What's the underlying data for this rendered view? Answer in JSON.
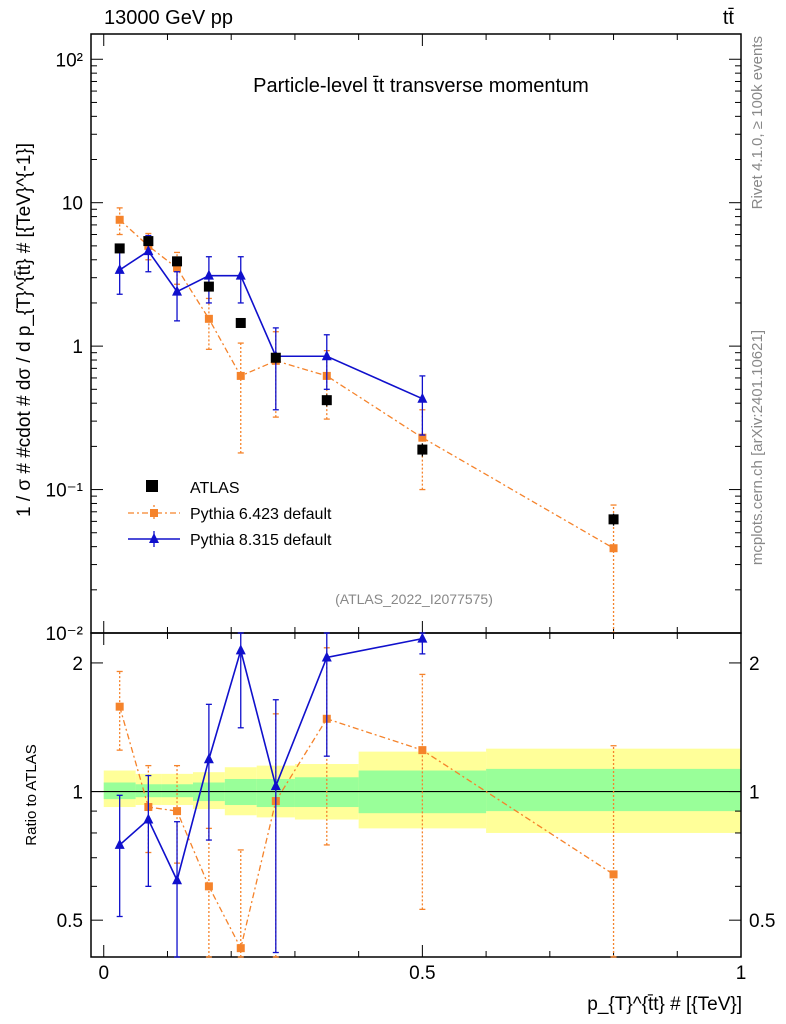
{
  "header": {
    "energy_label": "13000 GeV pp",
    "process_label": "tt̄",
    "plot_title": "Particle-level t̄t transverse momentum",
    "analysis_id": "(ATLAS_2022_I2077575)",
    "side_rivet": "Rivet 4.1.0, ≥ 100k events",
    "side_source": "mcplots.cern.ch [arXiv:2401.10621]"
  },
  "chart_data": [
    {
      "type": "line",
      "panel": "main",
      "ylabel": "1 / σ # #cdot # dσ / d p_{T}^{t̄t} # [{TeV}^{-1}]",
      "yscale": "log",
      "ylim": [
        0.01,
        150
      ],
      "xlim": [
        -0.02,
        1.0
      ],
      "y_ticks": [
        {
          "value": 100,
          "label": "10²"
        },
        {
          "value": 10,
          "label": "10"
        },
        {
          "value": 1,
          "label": "1"
        },
        {
          "value": 0.1,
          "label": "10⁻¹"
        },
        {
          "value": 0.01,
          "label": "10⁻²"
        }
      ],
      "legend": {
        "position": "bottom-left",
        "entries": [
          "ATLAS",
          "Pythia 6.423 default",
          "Pythia 8.315 default"
        ]
      },
      "series": [
        {
          "name": "ATLAS",
          "color": "#000000",
          "marker": "square",
          "x": [
            0.025,
            0.07,
            0.115,
            0.165,
            0.215,
            0.27,
            0.35,
            0.5,
            0.8
          ],
          "y": [
            4.8,
            5.4,
            3.9,
            2.6,
            1.45,
            0.83,
            0.42,
            0.19,
            0.062
          ],
          "yerr": [
            0.3,
            0.3,
            0.25,
            0.2,
            0.1,
            0.07,
            0.04,
            0.02,
            0.006
          ]
        },
        {
          "name": "Pythia 6.423 default",
          "color": "#f5832b",
          "marker": "square",
          "x": [
            0.025,
            0.07,
            0.115,
            0.165,
            0.215,
            0.27,
            0.35,
            0.5,
            0.8
          ],
          "y": [
            7.6,
            5.0,
            3.5,
            1.55,
            0.62,
            0.79,
            0.62,
            0.23,
            0.039
          ],
          "ylow": [
            6.0,
            4.0,
            2.7,
            0.95,
            0.18,
            0.32,
            0.31,
            0.1,
            0.009
          ],
          "yhigh": [
            9.2,
            6.1,
            4.5,
            2.15,
            1.05,
            1.26,
            0.93,
            0.36,
            0.078
          ]
        },
        {
          "name": "Pythia 8.315 default",
          "color": "#1010cc",
          "marker": "triangle",
          "x": [
            0.025,
            0.07,
            0.115,
            0.165,
            0.215,
            0.27,
            0.35,
            0.5
          ],
          "y": [
            3.4,
            4.6,
            2.4,
            3.1,
            3.1,
            0.85,
            0.85,
            0.43
          ],
          "ylow": [
            2.3,
            3.3,
            1.5,
            2.0,
            2.0,
            0.36,
            0.5,
            0.24
          ],
          "yhigh": [
            4.5,
            5.9,
            3.3,
            4.2,
            4.2,
            1.34,
            1.2,
            0.62
          ]
        }
      ]
    },
    {
      "type": "line",
      "panel": "ratio",
      "ylabel": "Ratio to ATLAS",
      "xlabel": "p_{T}^{t̄t} # [{TeV}]",
      "yscale": "log",
      "ylim": [
        0.41,
        2.35
      ],
      "xlim": [
        -0.02,
        1.0
      ],
      "x_ticks": [
        {
          "value": 0,
          "label": "0"
        },
        {
          "value": 0.5,
          "label": "0.5"
        },
        {
          "value": 1,
          "label": "1"
        }
      ],
      "y_ticks": [
        {
          "value": 2,
          "label": "2"
        },
        {
          "value": 1,
          "label": "1"
        },
        {
          "value": 0.5,
          "label": "0.5"
        }
      ],
      "bands": {
        "edges": [
          0,
          0.05,
          0.09,
          0.14,
          0.19,
          0.24,
          0.3,
          0.4,
          0.6,
          1.0
        ],
        "yellow": [
          [
            0.92,
            1.12
          ],
          [
            0.93,
            1.1
          ],
          [
            0.93,
            1.1
          ],
          [
            0.91,
            1.11
          ],
          [
            0.88,
            1.14
          ],
          [
            0.87,
            1.15
          ],
          [
            0.86,
            1.16
          ],
          [
            0.82,
            1.24
          ],
          [
            0.8,
            1.26
          ]
        ],
        "green": [
          [
            0.96,
            1.05
          ],
          [
            0.97,
            1.04
          ],
          [
            0.97,
            1.04
          ],
          [
            0.95,
            1.05
          ],
          [
            0.93,
            1.07
          ],
          [
            0.92,
            1.07
          ],
          [
            0.92,
            1.08
          ],
          [
            0.89,
            1.12
          ],
          [
            0.9,
            1.13
          ]
        ]
      },
      "series": [
        {
          "name": "Pythia 6.423 default",
          "color": "#f5832b",
          "marker": "square",
          "x": [
            0.025,
            0.07,
            0.115,
            0.165,
            0.215,
            0.27,
            0.35,
            0.5,
            0.8
          ],
          "y": [
            1.58,
            0.92,
            0.9,
            0.6,
            0.43,
            0.95,
            1.48,
            1.25,
            0.64
          ],
          "ylow": [
            1.25,
            0.72,
            0.68,
            0.37,
            0.2,
            0.35,
            0.75,
            0.53,
            0.15
          ],
          "yhigh": [
            1.91,
            1.15,
            1.15,
            0.82,
            0.73,
            1.52,
            2.17,
            1.88,
            1.28
          ]
        },
        {
          "name": "Pythia 8.315 default",
          "color": "#1010cc",
          "marker": "triangle",
          "x": [
            0.025,
            0.07,
            0.115,
            0.165,
            0.215,
            0.27,
            0.35,
            0.5
          ],
          "y": [
            0.75,
            0.86,
            0.62,
            1.19,
            2.14,
            1.03,
            2.06,
            2.28
          ],
          "ylow": [
            0.51,
            0.6,
            0.38,
            0.77,
            1.41,
            0.42,
            1.21,
            2.1
          ],
          "yhigh": [
            0.98,
            1.09,
            0.85,
            1.6,
            2.35,
            1.64,
            2.35,
            2.35
          ]
        }
      ]
    }
  ]
}
